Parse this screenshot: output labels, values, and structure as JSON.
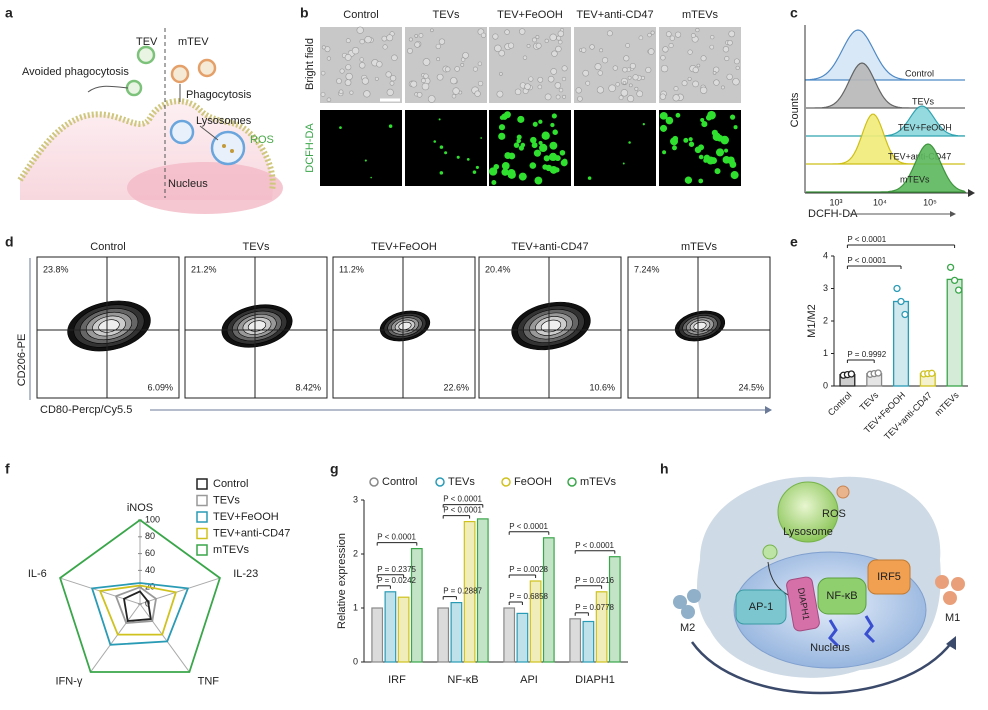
{
  "panel_labels": [
    "a",
    "b",
    "c",
    "d",
    "e",
    "f",
    "g",
    "h"
  ],
  "a": {
    "tev": "TEV",
    "mtev": "mTEV",
    "avoided": "Avoided phagocytosis",
    "phagocytosis": "Phagocytosis",
    "lysosomes": "Lysosomes",
    "ros": "ROS",
    "nucleus": "Nucleus"
  },
  "b": {
    "columns": [
      "Control",
      "TEVs",
      "TEV+FeOOH",
      "TEV+anti-CD47",
      "mTEVs"
    ],
    "rows": [
      "Bright field",
      "DCFH-DA"
    ]
  },
  "c": {
    "y_label": "Counts",
    "x_label": "DCFH-DA",
    "x_ticks": [
      "10³",
      "10⁴",
      "10⁵"
    ],
    "curves": [
      "Control",
      "TEVs",
      "TEV+FeOOH",
      "TEV+anti-CD47",
      "mTEVs"
    ]
  },
  "d": {
    "y_label": "CD206-PE",
    "x_label": "CD80-Percp/Cy5.5",
    "plots": [
      {
        "title": "Control",
        "upper_left": "23.8%",
        "lower_right": "6.09%"
      },
      {
        "title": "TEVs",
        "upper_left": "21.2%",
        "lower_right": "8.42%"
      },
      {
        "title": "TEV+FeOOH",
        "upper_left": "11.2%",
        "lower_right": "22.6%"
      },
      {
        "title": "TEV+anti-CD47",
        "upper_left": "20.4%",
        "lower_right": "10.6%"
      },
      {
        "title": "mTEVs",
        "upper_left": "7.24%",
        "lower_right": "24.5%"
      }
    ]
  },
  "h": {
    "ros": "ROS",
    "lysosome": "Lysosome",
    "ap1": "AP-1",
    "diaph1": "DIAPH1",
    "nfkb": "NF-κB",
    "irf5": "IRF5",
    "nucleus": "Nucleus",
    "m2": "M2",
    "m1": "M1"
  },
  "chart_data": [
    {
      "type": "bar",
      "y_label": "M1/M2",
      "categories": [
        "Control",
        "TEVs",
        "TEV+FeOOH",
        "TEV+anti-CD47",
        "mTEVs"
      ],
      "values": [
        0.35,
        0.38,
        2.6,
        0.38,
        3.28
      ],
      "points": [
        [
          0.33,
          0.35,
          0.37
        ],
        [
          0.36,
          0.38,
          0.4
        ],
        [
          3.0,
          2.6,
          2.2
        ],
        [
          0.37,
          0.38,
          0.39
        ],
        [
          3.65,
          3.25,
          2.95
        ]
      ],
      "colors": [
        "#222222",
        "#888888",
        "#2a9bb5",
        "#cfc21f",
        "#3aa64a"
      ],
      "ylim": [
        0,
        4
      ],
      "yticks": [
        0,
        1,
        2,
        3,
        4
      ],
      "annotations": [
        "P = 0.9992",
        "P < 0.0001",
        "P < 0.0001"
      ]
    },
    {
      "type": "radar",
      "axes": [
        "iNOS",
        "IL-23",
        "TNF",
        "IFN-γ",
        "IL-6"
      ],
      "rlim": [
        0,
        100
      ],
      "rticks": [
        0,
        20,
        40,
        60,
        80,
        100
      ],
      "series": [
        {
          "name": "Control",
          "color": "#222222",
          "values": [
            15,
            10,
            22,
            25,
            20
          ]
        },
        {
          "name": "TEVs",
          "color": "#999999",
          "values": [
            20,
            20,
            25,
            28,
            30
          ]
        },
        {
          "name": "TEV+FeOOH",
          "color": "#2a9bb5",
          "values": [
            25,
            60,
            55,
            60,
            60
          ]
        },
        {
          "name": "TEV+anti-CD47",
          "color": "#cfc21f",
          "values": [
            22,
            45,
            45,
            45,
            50
          ]
        },
        {
          "name": "mTEVs",
          "color": "#3aa64a",
          "values": [
            100,
            100,
            100,
            100,
            100
          ]
        }
      ]
    },
    {
      "type": "bar",
      "y_label": "Relative expression",
      "categories": [
        "IRF",
        "NF-κB",
        "API",
        "DIAPH1"
      ],
      "series": [
        {
          "name": "Control",
          "color": "#888888",
          "values": [
            1.0,
            1.0,
            1.0,
            0.8
          ]
        },
        {
          "name": "TEVs",
          "color": "#2a9bb5",
          "values": [
            1.3,
            1.1,
            0.9,
            0.75
          ]
        },
        {
          "name": "FeOOH",
          "color": "#cfc21f",
          "values": [
            1.2,
            2.6,
            1.5,
            1.3
          ]
        },
        {
          "name": "mTEVs",
          "color": "#3aa64a",
          "values": [
            2.1,
            2.65,
            2.3,
            1.95
          ]
        }
      ],
      "ylim": [
        0,
        3
      ],
      "yticks": [
        0,
        1,
        2,
        3
      ],
      "annotations": [
        [
          "P = 0.0242",
          "P = 0.2375",
          "P < 0.0001"
        ],
        [
          "P = 0.2887",
          "P < 0.0001",
          "P < 0.0001"
        ],
        [
          "P = 0.6858",
          "P = 0.0028",
          "P < 0.0001"
        ],
        [
          "P = 0.0778",
          "P = 0.0216",
          "P < 0.0001"
        ]
      ]
    }
  ]
}
